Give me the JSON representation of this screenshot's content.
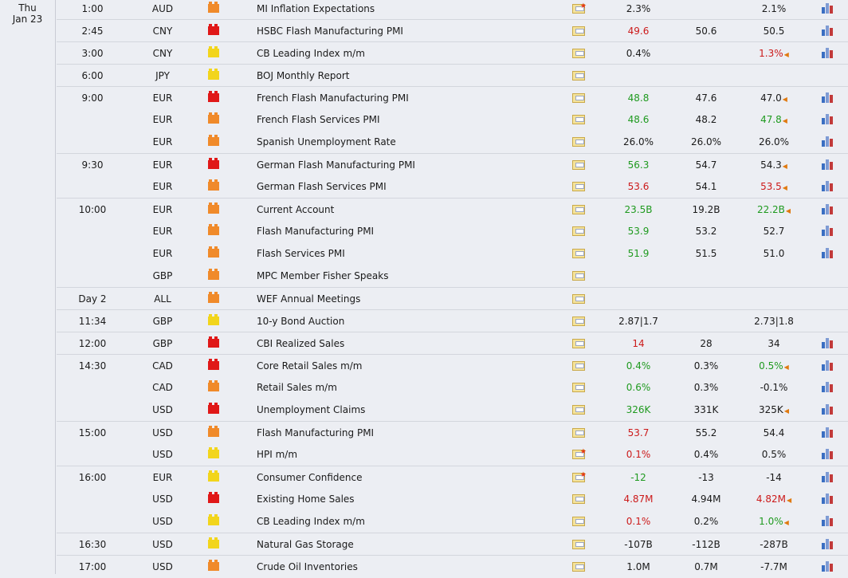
{
  "date": {
    "day": "Thu",
    "date": "Jan 23"
  },
  "rows": [
    {
      "time": "1:00",
      "currency": "AUD",
      "impact": "med",
      "event": "MI Inflation Expectations",
      "star": true,
      "actual": "2.3%",
      "actual_color": "",
      "forecast": "",
      "previous": "2.1%",
      "previous_color": "",
      "revised": false,
      "chart": true,
      "sep": true
    },
    {
      "time": "2:45",
      "currency": "CNY",
      "impact": "high",
      "event": "HSBC Flash Manufacturing PMI",
      "star": false,
      "actual": "49.6",
      "actual_color": "red",
      "forecast": "50.6",
      "previous": "50.5",
      "previous_color": "",
      "revised": false,
      "chart": true,
      "sep": true
    },
    {
      "time": "3:00",
      "currency": "CNY",
      "impact": "low",
      "event": "CB Leading Index m/m",
      "star": false,
      "actual": "0.4%",
      "actual_color": "",
      "forecast": "",
      "previous": "1.3%",
      "previous_color": "red",
      "revised": true,
      "chart": true,
      "sep": true
    },
    {
      "time": "6:00",
      "currency": "JPY",
      "impact": "low",
      "event": "BOJ Monthly Report",
      "star": false,
      "actual": "",
      "actual_color": "",
      "forecast": "",
      "previous": "",
      "previous_color": "",
      "revised": false,
      "chart": false,
      "sep": true
    },
    {
      "time": "9:00",
      "currency": "EUR",
      "impact": "high",
      "event": "French Flash Manufacturing PMI",
      "star": false,
      "actual": "48.8",
      "actual_color": "green",
      "forecast": "47.6",
      "previous": "47.0",
      "previous_color": "",
      "revised": true,
      "chart": true,
      "sep": true
    },
    {
      "time": "",
      "currency": "EUR",
      "impact": "med",
      "event": "French Flash Services PMI",
      "star": false,
      "actual": "48.6",
      "actual_color": "green",
      "forecast": "48.2",
      "previous": "47.8",
      "previous_color": "green",
      "revised": true,
      "chart": true,
      "sep": false
    },
    {
      "time": "",
      "currency": "EUR",
      "impact": "med",
      "event": "Spanish Unemployment Rate",
      "star": false,
      "actual": "26.0%",
      "actual_color": "",
      "forecast": "26.0%",
      "previous": "26.0%",
      "previous_color": "",
      "revised": false,
      "chart": true,
      "sep": false
    },
    {
      "time": "9:30",
      "currency": "EUR",
      "impact": "high",
      "event": "German Flash Manufacturing PMI",
      "star": false,
      "actual": "56.3",
      "actual_color": "green",
      "forecast": "54.7",
      "previous": "54.3",
      "previous_color": "",
      "revised": true,
      "chart": true,
      "sep": true
    },
    {
      "time": "",
      "currency": "EUR",
      "impact": "med",
      "event": "German Flash Services PMI",
      "star": false,
      "actual": "53.6",
      "actual_color": "red",
      "forecast": "54.1",
      "previous": "53.5",
      "previous_color": "red",
      "revised": true,
      "chart": true,
      "sep": false
    },
    {
      "time": "10:00",
      "currency": "EUR",
      "impact": "med",
      "event": "Current Account",
      "star": false,
      "actual": "23.5B",
      "actual_color": "green",
      "forecast": "19.2B",
      "previous": "22.2B",
      "previous_color": "green",
      "revised": true,
      "chart": true,
      "sep": true
    },
    {
      "time": "",
      "currency": "EUR",
      "impact": "med",
      "event": "Flash Manufacturing PMI",
      "star": false,
      "actual": "53.9",
      "actual_color": "green",
      "forecast": "53.2",
      "previous": "52.7",
      "previous_color": "",
      "revised": false,
      "chart": true,
      "sep": false
    },
    {
      "time": "",
      "currency": "EUR",
      "impact": "med",
      "event": "Flash Services PMI",
      "star": false,
      "actual": "51.9",
      "actual_color": "green",
      "forecast": "51.5",
      "previous": "51.0",
      "previous_color": "",
      "revised": false,
      "chart": true,
      "sep": false
    },
    {
      "time": "",
      "currency": "GBP",
      "impact": "med",
      "event": "MPC Member Fisher Speaks",
      "star": false,
      "actual": "",
      "actual_color": "",
      "forecast": "",
      "previous": "",
      "previous_color": "",
      "revised": false,
      "chart": false,
      "sep": false
    },
    {
      "time": "Day 2",
      "currency": "ALL",
      "impact": "med",
      "event": "WEF Annual Meetings",
      "star": false,
      "actual": "",
      "actual_color": "",
      "forecast": "",
      "previous": "",
      "previous_color": "",
      "revised": false,
      "chart": false,
      "sep": true
    },
    {
      "time": "11:34",
      "currency": "GBP",
      "impact": "low",
      "event": "10-y Bond Auction",
      "star": false,
      "actual": "2.87|1.7",
      "actual_color": "",
      "forecast": "",
      "previous": "2.73|1.8",
      "previous_color": "",
      "revised": false,
      "chart": false,
      "sep": true
    },
    {
      "time": "12:00",
      "currency": "GBP",
      "impact": "high",
      "event": "CBI Realized Sales",
      "star": false,
      "actual": "14",
      "actual_color": "red",
      "forecast": "28",
      "previous": "34",
      "previous_color": "",
      "revised": false,
      "chart": true,
      "sep": true
    },
    {
      "time": "14:30",
      "currency": "CAD",
      "impact": "high",
      "event": "Core Retail Sales m/m",
      "star": false,
      "actual": "0.4%",
      "actual_color": "green",
      "forecast": "0.3%",
      "previous": "0.5%",
      "previous_color": "green",
      "revised": true,
      "chart": true,
      "sep": true
    },
    {
      "time": "",
      "currency": "CAD",
      "impact": "med",
      "event": "Retail Sales m/m",
      "star": false,
      "actual": "0.6%",
      "actual_color": "green",
      "forecast": "0.3%",
      "previous": "-0.1%",
      "previous_color": "",
      "revised": false,
      "chart": true,
      "sep": false
    },
    {
      "time": "",
      "currency": "USD",
      "impact": "high",
      "event": "Unemployment Claims",
      "star": false,
      "actual": "326K",
      "actual_color": "green",
      "forecast": "331K",
      "previous": "325K",
      "previous_color": "",
      "revised": true,
      "chart": true,
      "sep": false
    },
    {
      "time": "15:00",
      "currency": "USD",
      "impact": "med",
      "event": "Flash Manufacturing PMI",
      "star": false,
      "actual": "53.7",
      "actual_color": "red",
      "forecast": "55.2",
      "previous": "54.4",
      "previous_color": "",
      "revised": false,
      "chart": true,
      "sep": true
    },
    {
      "time": "",
      "currency": "USD",
      "impact": "low",
      "event": "HPI m/m",
      "star": true,
      "actual": "0.1%",
      "actual_color": "red",
      "forecast": "0.4%",
      "previous": "0.5%",
      "previous_color": "",
      "revised": false,
      "chart": true,
      "sep": false
    },
    {
      "time": "16:00",
      "currency": "EUR",
      "impact": "low",
      "event": "Consumer Confidence",
      "star": true,
      "actual": "-12",
      "actual_color": "green",
      "forecast": "-13",
      "previous": "-14",
      "previous_color": "",
      "revised": false,
      "chart": true,
      "sep": true
    },
    {
      "time": "",
      "currency": "USD",
      "impact": "high",
      "event": "Existing Home Sales",
      "star": false,
      "actual": "4.87M",
      "actual_color": "red",
      "forecast": "4.94M",
      "previous": "4.82M",
      "previous_color": "red",
      "revised": true,
      "chart": true,
      "sep": false
    },
    {
      "time": "",
      "currency": "USD",
      "impact": "low",
      "event": "CB Leading Index m/m",
      "star": false,
      "actual": "0.1%",
      "actual_color": "red",
      "forecast": "0.2%",
      "previous": "1.0%",
      "previous_color": "green",
      "revised": true,
      "chart": true,
      "sep": false
    },
    {
      "time": "16:30",
      "currency": "USD",
      "impact": "low",
      "event": "Natural Gas Storage",
      "star": false,
      "actual": "-107B",
      "actual_color": "",
      "forecast": "-112B",
      "previous": "-287B",
      "previous_color": "",
      "revised": false,
      "chart": true,
      "sep": true
    },
    {
      "time": "17:00",
      "currency": "USD",
      "impact": "med",
      "event": "Crude Oil Inventories",
      "star": false,
      "actual": "1.0M",
      "actual_color": "",
      "forecast": "0.7M",
      "previous": "-7.7M",
      "previous_color": "",
      "revised": false,
      "chart": true,
      "sep": true
    }
  ]
}
